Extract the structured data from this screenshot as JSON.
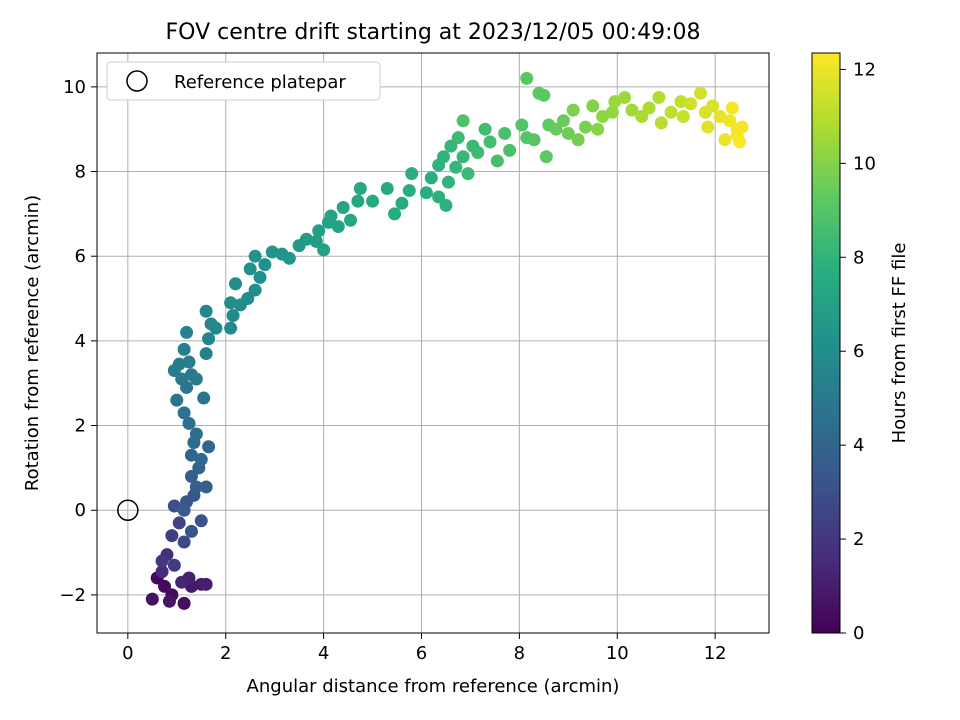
{
  "chart_data": {
    "type": "scatter",
    "title": "FOV centre drift starting at 2023/12/05 00:49:08",
    "xlabel": "Angular distance from reference (arcmin)",
    "ylabel": "Rotation from reference (arcmin)",
    "xlim": [
      -0.63,
      13.1
    ],
    "ylim": [
      -2.9,
      10.8
    ],
    "xticks": [
      0,
      2,
      4,
      6,
      8,
      10,
      12
    ],
    "yticks": [
      -2,
      0,
      2,
      4,
      6,
      8,
      10
    ],
    "xtick_labels": [
      "0",
      "2",
      "4",
      "6",
      "8",
      "10",
      "12"
    ],
    "ytick_labels": [
      "−2",
      "0",
      "2",
      "4",
      "6",
      "8",
      "10"
    ],
    "grid": true,
    "legend": {
      "placement": "top-left",
      "entries": [
        "Reference platepar"
      ]
    },
    "reference_point": {
      "x": 0,
      "y": 0,
      "label": "Reference platepar"
    },
    "colorbar": {
      "label": "Hours from first FF file",
      "colormap": "viridis",
      "range": [
        0,
        12.35
      ],
      "ticks": [
        0,
        2,
        4,
        6,
        8,
        10,
        12
      ],
      "tick_labels": [
        "0",
        "2",
        "4",
        "6",
        "8",
        "10",
        "12"
      ]
    },
    "series": [
      {
        "color_by": "hours",
        "points": [
          {
            "x": 0.6,
            "y": -1.6,
            "c": 0.2
          },
          {
            "x": 0.9,
            "y": -2.0,
            "c": 0.3
          },
          {
            "x": 0.75,
            "y": -1.8,
            "c": 0.4
          },
          {
            "x": 1.15,
            "y": -2.2,
            "c": 0.5
          },
          {
            "x": 0.5,
            "y": -2.1,
            "c": 0.6
          },
          {
            "x": 0.85,
            "y": -2.15,
            "c": 0.7
          },
          {
            "x": 1.3,
            "y": -1.8,
            "c": 0.8
          },
          {
            "x": 1.5,
            "y": -1.75,
            "c": 0.9
          },
          {
            "x": 1.6,
            "y": -1.75,
            "c": 1.0
          },
          {
            "x": 1.25,
            "y": -1.6,
            "c": 1.1
          },
          {
            "x": 1.1,
            "y": -1.7,
            "c": 1.3
          },
          {
            "x": 0.7,
            "y": -1.45,
            "c": 1.5
          },
          {
            "x": 0.8,
            "y": -1.05,
            "c": 1.7
          },
          {
            "x": 0.7,
            "y": -1.2,
            "c": 1.9
          },
          {
            "x": 0.95,
            "y": -1.3,
            "c": 2.1
          },
          {
            "x": 0.9,
            "y": -0.6,
            "c": 2.3
          },
          {
            "x": 1.05,
            "y": -0.3,
            "c": 2.5
          },
          {
            "x": 1.15,
            "y": -0.75,
            "c": 2.7
          },
          {
            "x": 0.95,
            "y": 0.1,
            "c": 2.9
          },
          {
            "x": 1.3,
            "y": -0.5,
            "c": 3.1
          },
          {
            "x": 1.5,
            "y": -0.25,
            "c": 3.2
          },
          {
            "x": 1.2,
            "y": 0.2,
            "c": 3.3
          },
          {
            "x": 1.35,
            "y": 0.35,
            "c": 3.4
          },
          {
            "x": 1.15,
            "y": 0.0,
            "c": 3.5
          },
          {
            "x": 1.4,
            "y": 0.55,
            "c": 3.6
          },
          {
            "x": 1.3,
            "y": 0.8,
            "c": 3.7
          },
          {
            "x": 1.6,
            "y": 0.55,
            "c": 3.8
          },
          {
            "x": 1.45,
            "y": 1.0,
            "c": 3.9
          },
          {
            "x": 1.3,
            "y": 1.3,
            "c": 4.0
          },
          {
            "x": 1.65,
            "y": 1.5,
            "c": 4.1
          },
          {
            "x": 1.5,
            "y": 1.2,
            "c": 4.2
          },
          {
            "x": 1.35,
            "y": 1.6,
            "c": 4.3
          },
          {
            "x": 1.4,
            "y": 1.8,
            "c": 4.4
          },
          {
            "x": 1.25,
            "y": 2.05,
            "c": 4.5
          },
          {
            "x": 1.15,
            "y": 2.3,
            "c": 4.6
          },
          {
            "x": 1.0,
            "y": 2.6,
            "c": 4.7
          },
          {
            "x": 1.55,
            "y": 2.65,
            "c": 4.75
          },
          {
            "x": 1.2,
            "y": 2.9,
            "c": 4.8
          },
          {
            "x": 1.1,
            "y": 3.1,
            "c": 4.9
          },
          {
            "x": 1.3,
            "y": 3.2,
            "c": 5.0
          },
          {
            "x": 0.95,
            "y": 3.3,
            "c": 5.05
          },
          {
            "x": 1.4,
            "y": 3.1,
            "c": 5.1
          },
          {
            "x": 1.05,
            "y": 3.45,
            "c": 5.2
          },
          {
            "x": 1.25,
            "y": 3.5,
            "c": 5.25
          },
          {
            "x": 1.15,
            "y": 3.8,
            "c": 5.3
          },
          {
            "x": 1.6,
            "y": 3.7,
            "c": 5.4
          },
          {
            "x": 1.2,
            "y": 4.2,
            "c": 5.5
          },
          {
            "x": 1.65,
            "y": 4.05,
            "c": 5.55
          },
          {
            "x": 1.7,
            "y": 4.4,
            "c": 5.6
          },
          {
            "x": 1.6,
            "y": 4.7,
            "c": 5.7
          },
          {
            "x": 1.8,
            "y": 4.3,
            "c": 5.75
          },
          {
            "x": 2.1,
            "y": 4.3,
            "c": 5.8
          },
          {
            "x": 2.15,
            "y": 4.6,
            "c": 5.85
          },
          {
            "x": 2.3,
            "y": 4.85,
            "c": 5.9
          },
          {
            "x": 2.1,
            "y": 4.9,
            "c": 5.95
          },
          {
            "x": 2.45,
            "y": 5.0,
            "c": 6.0
          },
          {
            "x": 2.2,
            "y": 5.35,
            "c": 6.05
          },
          {
            "x": 2.6,
            "y": 5.2,
            "c": 6.1
          },
          {
            "x": 2.7,
            "y": 5.5,
            "c": 6.15
          },
          {
            "x": 2.5,
            "y": 5.7,
            "c": 6.2
          },
          {
            "x": 2.8,
            "y": 5.8,
            "c": 6.25
          },
          {
            "x": 2.6,
            "y": 6.0,
            "c": 6.3
          },
          {
            "x": 2.95,
            "y": 6.1,
            "c": 6.35
          },
          {
            "x": 3.15,
            "y": 6.05,
            "c": 6.4
          },
          {
            "x": 3.3,
            "y": 5.95,
            "c": 6.5
          },
          {
            "x": 3.5,
            "y": 6.25,
            "c": 6.6
          },
          {
            "x": 3.65,
            "y": 6.4,
            "c": 6.7
          },
          {
            "x": 3.85,
            "y": 6.35,
            "c": 6.8
          },
          {
            "x": 3.9,
            "y": 6.6,
            "c": 6.9
          },
          {
            "x": 4.0,
            "y": 6.15,
            "c": 7.0
          },
          {
            "x": 4.1,
            "y": 6.8,
            "c": 7.05
          },
          {
            "x": 4.3,
            "y": 6.7,
            "c": 7.1
          },
          {
            "x": 4.15,
            "y": 6.95,
            "c": 7.15
          },
          {
            "x": 4.4,
            "y": 7.15,
            "c": 7.2
          },
          {
            "x": 4.55,
            "y": 6.85,
            "c": 7.3
          },
          {
            "x": 4.7,
            "y": 7.3,
            "c": 7.35
          },
          {
            "x": 4.75,
            "y": 7.6,
            "c": 7.4
          },
          {
            "x": 5.0,
            "y": 7.3,
            "c": 7.45
          },
          {
            "x": 5.3,
            "y": 7.6,
            "c": 7.5
          },
          {
            "x": 5.45,
            "y": 7.0,
            "c": 7.55
          },
          {
            "x": 5.6,
            "y": 7.25,
            "c": 7.6
          },
          {
            "x": 5.75,
            "y": 7.55,
            "c": 7.65
          },
          {
            "x": 5.8,
            "y": 7.95,
            "c": 7.7
          },
          {
            "x": 6.1,
            "y": 7.5,
            "c": 7.75
          },
          {
            "x": 6.2,
            "y": 7.85,
            "c": 7.8
          },
          {
            "x": 6.35,
            "y": 7.4,
            "c": 7.85
          },
          {
            "x": 6.5,
            "y": 7.2,
            "c": 7.9
          },
          {
            "x": 6.35,
            "y": 8.15,
            "c": 7.95
          },
          {
            "x": 6.55,
            "y": 7.75,
            "c": 8.0
          },
          {
            "x": 6.45,
            "y": 8.35,
            "c": 8.05
          },
          {
            "x": 6.7,
            "y": 8.1,
            "c": 8.1
          },
          {
            "x": 6.6,
            "y": 8.6,
            "c": 8.15
          },
          {
            "x": 6.85,
            "y": 8.35,
            "c": 8.2
          },
          {
            "x": 6.95,
            "y": 7.95,
            "c": 8.25
          },
          {
            "x": 7.05,
            "y": 8.6,
            "c": 8.3
          },
          {
            "x": 6.75,
            "y": 8.8,
            "c": 8.35
          },
          {
            "x": 7.15,
            "y": 8.45,
            "c": 8.4
          },
          {
            "x": 7.3,
            "y": 9.0,
            "c": 8.5
          },
          {
            "x": 7.4,
            "y": 8.7,
            "c": 8.55
          },
          {
            "x": 7.55,
            "y": 8.25,
            "c": 8.6
          },
          {
            "x": 7.7,
            "y": 8.9,
            "c": 8.7
          },
          {
            "x": 7.8,
            "y": 8.5,
            "c": 8.75
          },
          {
            "x": 6.85,
            "y": 9.2,
            "c": 8.8
          },
          {
            "x": 8.05,
            "y": 9.1,
            "c": 8.9
          },
          {
            "x": 8.15,
            "y": 8.8,
            "c": 9.0
          },
          {
            "x": 8.3,
            "y": 8.75,
            "c": 9.05
          },
          {
            "x": 8.15,
            "y": 10.2,
            "c": 9.1
          },
          {
            "x": 8.4,
            "y": 9.85,
            "c": 9.15
          },
          {
            "x": 8.5,
            "y": 9.8,
            "c": 9.2
          },
          {
            "x": 8.55,
            "y": 8.35,
            "c": 9.25
          },
          {
            "x": 8.6,
            "y": 9.1,
            "c": 9.3
          },
          {
            "x": 8.75,
            "y": 9.0,
            "c": 9.4
          },
          {
            "x": 8.9,
            "y": 9.2,
            "c": 9.5
          },
          {
            "x": 9.0,
            "y": 8.9,
            "c": 9.6
          },
          {
            "x": 9.2,
            "y": 8.75,
            "c": 9.7
          },
          {
            "x": 9.35,
            "y": 9.05,
            "c": 9.8
          },
          {
            "x": 9.1,
            "y": 9.45,
            "c": 9.9
          },
          {
            "x": 9.5,
            "y": 9.55,
            "c": 10.0
          },
          {
            "x": 9.6,
            "y": 9.0,
            "c": 10.1
          },
          {
            "x": 9.7,
            "y": 9.3,
            "c": 10.2
          },
          {
            "x": 9.9,
            "y": 9.4,
            "c": 10.3
          },
          {
            "x": 9.95,
            "y": 9.65,
            "c": 10.4
          },
          {
            "x": 10.15,
            "y": 9.75,
            "c": 10.5
          },
          {
            "x": 10.3,
            "y": 9.45,
            "c": 10.6
          },
          {
            "x": 10.5,
            "y": 9.3,
            "c": 10.7
          },
          {
            "x": 10.65,
            "y": 9.5,
            "c": 10.8
          },
          {
            "x": 10.85,
            "y": 9.75,
            "c": 10.9
          },
          {
            "x": 10.9,
            "y": 9.15,
            "c": 11.0
          },
          {
            "x": 11.1,
            "y": 9.4,
            "c": 11.1
          },
          {
            "x": 11.3,
            "y": 9.65,
            "c": 11.2
          },
          {
            "x": 11.35,
            "y": 9.3,
            "c": 11.3
          },
          {
            "x": 11.5,
            "y": 9.6,
            "c": 11.4
          },
          {
            "x": 11.7,
            "y": 9.85,
            "c": 11.5
          },
          {
            "x": 11.8,
            "y": 9.4,
            "c": 11.6
          },
          {
            "x": 11.95,
            "y": 9.55,
            "c": 11.7
          },
          {
            "x": 11.85,
            "y": 9.05,
            "c": 11.8
          },
          {
            "x": 12.1,
            "y": 9.3,
            "c": 11.9
          },
          {
            "x": 12.2,
            "y": 8.75,
            "c": 12.0
          },
          {
            "x": 12.3,
            "y": 9.2,
            "c": 12.05
          },
          {
            "x": 12.45,
            "y": 9.0,
            "c": 12.1
          },
          {
            "x": 12.35,
            "y": 9.5,
            "c": 12.15
          },
          {
            "x": 12.45,
            "y": 8.85,
            "c": 12.2
          },
          {
            "x": 12.55,
            "y": 9.05,
            "c": 12.25
          },
          {
            "x": 12.5,
            "y": 8.7,
            "c": 12.3
          }
        ]
      }
    ]
  }
}
